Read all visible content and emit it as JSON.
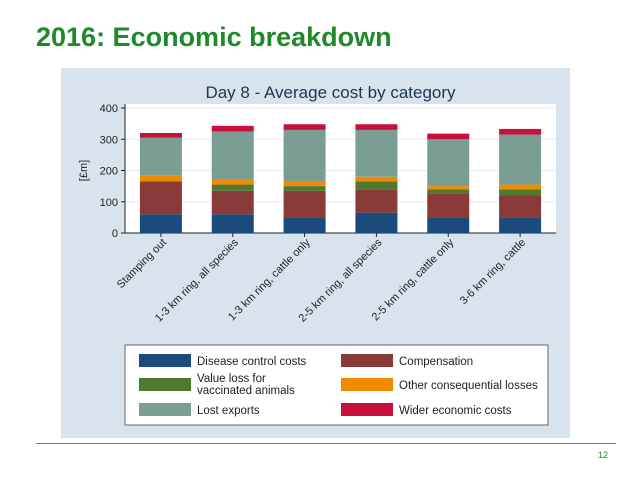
{
  "slide": {
    "title": "2016: Economic breakdown",
    "page_number": "12"
  },
  "colors": {
    "title_green": "#1f8a2a",
    "panel_bg": "#d9e3ee",
    "plot_bg": "#ffffff",
    "series": [
      "#1a4b7a",
      "#8b3a3a",
      "#4f7a2e",
      "#f08a00",
      "#7a9e93",
      "#c8103d"
    ]
  },
  "chart_data": {
    "type": "bar",
    "stacked": true,
    "title": "Day 8 - Average cost by category",
    "xlabel": "",
    "ylabel": "[£m]",
    "ylim": [
      0,
      400
    ],
    "yticks": [
      0,
      100,
      200,
      300,
      400
    ],
    "grid": true,
    "legend_position": "bottom",
    "categories": [
      "Stamping out",
      "1-3 km ring, all species",
      "1-3 km ring, cattle only",
      "2-5 km ring, all species",
      "2-5 km ring, cattle only",
      "3-6 km ring, cattle"
    ],
    "series": [
      {
        "name": "Disease control costs",
        "values": [
          60,
          60,
          50,
          65,
          50,
          50
        ]
      },
      {
        "name": "Compensation",
        "values": [
          105,
          75,
          85,
          75,
          75,
          70
        ]
      },
      {
        "name": "Value loss for vaccinated animals",
        "values": [
          0,
          20,
          15,
          25,
          15,
          20
        ]
      },
      {
        "name": "Other consequential losses",
        "values": [
          20,
          15,
          15,
          15,
          10,
          15
        ]
      },
      {
        "name": "Lost exports",
        "values": [
          120,
          155,
          165,
          150,
          150,
          160
        ]
      },
      {
        "name": "Wider economic costs",
        "values": [
          15,
          18,
          18,
          18,
          18,
          18
        ]
      }
    ],
    "legend_order": [
      0,
      1,
      2,
      3,
      4,
      5
    ]
  }
}
